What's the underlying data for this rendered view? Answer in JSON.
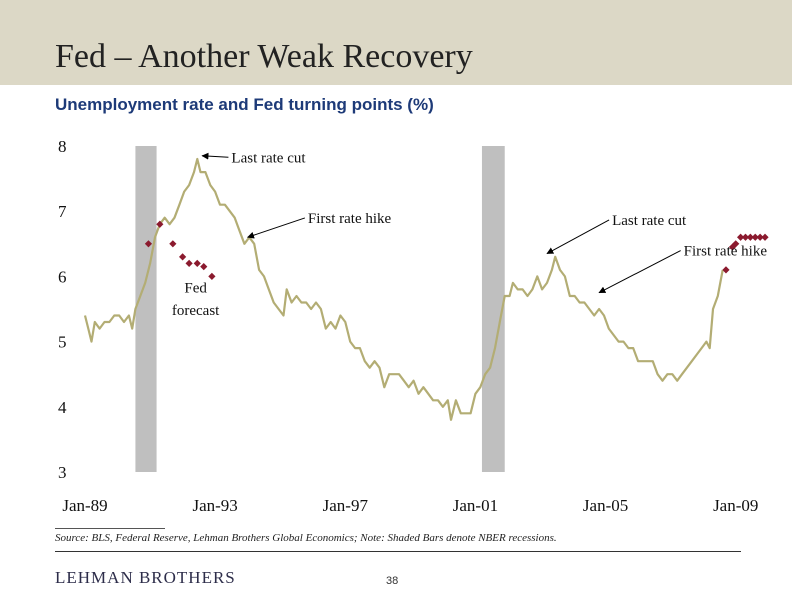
{
  "slide": {
    "title": "Fed – Another Weak Recovery",
    "subtitle": "Unemployment rate and Fed turning points (%)",
    "source": "Source: BLS, Federal Reserve, Lehman Brothers Global Economics; Note: Shaded Bars denote NBER recessions.",
    "logo_text": "LEHMAN BROTHERS",
    "page_number": "38"
  },
  "colors": {
    "title_band": "#dcd8c6",
    "subtitle": "#1d3a78",
    "unemployment_line": "#b3ad74",
    "forecast_marker": "#8b1a2e",
    "recession_bar": "#bfbfbf"
  },
  "chart_data": {
    "type": "line",
    "title": "",
    "xlabel": "",
    "ylabel": "",
    "x_tick_labels": [
      "Jan-89",
      "Jan-93",
      "Jan-97",
      "Jan-01",
      "Jan-05",
      "Jan-09"
    ],
    "x_ticks_year": [
      1989,
      1993,
      1997,
      2001,
      2005,
      2009
    ],
    "xlim": [
      1989,
      2009.5
    ],
    "ylim": [
      3,
      8
    ],
    "y_ticks": [
      3,
      4,
      5,
      6,
      7,
      8
    ],
    "grid": false,
    "recessions": [
      {
        "start": 1990.55,
        "end": 1991.2
      },
      {
        "start": 2001.2,
        "end": 2001.9
      }
    ],
    "series": [
      {
        "values": [
          [
            1989.0,
            5.4
          ],
          [
            1989.1,
            5.2
          ],
          [
            1989.2,
            5.0
          ],
          [
            1989.3,
            5.3
          ],
          [
            1989.45,
            5.2
          ],
          [
            1989.6,
            5.3
          ],
          [
            1989.75,
            5.3
          ],
          [
            1989.9,
            5.4
          ],
          [
            1990.05,
            5.4
          ],
          [
            1990.2,
            5.3
          ],
          [
            1990.35,
            5.4
          ],
          [
            1990.45,
            5.2
          ],
          [
            1990.55,
            5.5
          ],
          [
            1990.7,
            5.7
          ],
          [
            1990.85,
            5.9
          ],
          [
            1991.0,
            6.2
          ],
          [
            1991.15,
            6.6
          ],
          [
            1991.3,
            6.8
          ],
          [
            1991.45,
            6.9
          ],
          [
            1991.6,
            6.8
          ],
          [
            1991.75,
            6.9
          ],
          [
            1991.9,
            7.1
          ],
          [
            1992.05,
            7.3
          ],
          [
            1992.2,
            7.4
          ],
          [
            1992.35,
            7.6
          ],
          [
            1992.45,
            7.8
          ],
          [
            1992.55,
            7.6
          ],
          [
            1992.7,
            7.6
          ],
          [
            1992.85,
            7.4
          ],
          [
            1993.0,
            7.3
          ],
          [
            1993.15,
            7.1
          ],
          [
            1993.3,
            7.1
          ],
          [
            1993.45,
            7.0
          ],
          [
            1993.6,
            6.9
          ],
          [
            1993.75,
            6.7
          ],
          [
            1993.9,
            6.5
          ],
          [
            1994.05,
            6.6
          ],
          [
            1994.2,
            6.5
          ],
          [
            1994.35,
            6.1
          ],
          [
            1994.5,
            6.0
          ],
          [
            1994.65,
            5.8
          ],
          [
            1994.8,
            5.6
          ],
          [
            1994.95,
            5.5
          ],
          [
            1995.1,
            5.4
          ],
          [
            1995.2,
            5.8
          ],
          [
            1995.35,
            5.6
          ],
          [
            1995.5,
            5.7
          ],
          [
            1995.65,
            5.6
          ],
          [
            1995.8,
            5.6
          ],
          [
            1995.95,
            5.5
          ],
          [
            1996.1,
            5.6
          ],
          [
            1996.25,
            5.5
          ],
          [
            1996.4,
            5.2
          ],
          [
            1996.55,
            5.3
          ],
          [
            1996.7,
            5.2
          ],
          [
            1996.85,
            5.4
          ],
          [
            1997.0,
            5.3
          ],
          [
            1997.15,
            5.0
          ],
          [
            1997.3,
            4.9
          ],
          [
            1997.45,
            4.9
          ],
          [
            1997.6,
            4.7
          ],
          [
            1997.75,
            4.6
          ],
          [
            1997.9,
            4.7
          ],
          [
            1998.05,
            4.6
          ],
          [
            1998.2,
            4.3
          ],
          [
            1998.35,
            4.5
          ],
          [
            1998.5,
            4.5
          ],
          [
            1998.65,
            4.5
          ],
          [
            1998.8,
            4.4
          ],
          [
            1998.95,
            4.3
          ],
          [
            1999.1,
            4.4
          ],
          [
            1999.25,
            4.2
          ],
          [
            1999.4,
            4.3
          ],
          [
            1999.55,
            4.2
          ],
          [
            1999.7,
            4.1
          ],
          [
            1999.85,
            4.1
          ],
          [
            2000.0,
            4.0
          ],
          [
            2000.15,
            4.1
          ],
          [
            2000.25,
            3.8
          ],
          [
            2000.4,
            4.1
          ],
          [
            2000.55,
            3.9
          ],
          [
            2000.7,
            3.9
          ],
          [
            2000.85,
            3.9
          ],
          [
            2001.0,
            4.2
          ],
          [
            2001.15,
            4.3
          ],
          [
            2001.3,
            4.5
          ],
          [
            2001.45,
            4.6
          ],
          [
            2001.6,
            4.9
          ],
          [
            2001.75,
            5.3
          ],
          [
            2001.9,
            5.7
          ],
          [
            2002.05,
            5.7
          ],
          [
            2002.15,
            5.9
          ],
          [
            2002.3,
            5.8
          ],
          [
            2002.45,
            5.8
          ],
          [
            2002.6,
            5.7
          ],
          [
            2002.75,
            5.8
          ],
          [
            2002.9,
            6.0
          ],
          [
            2003.05,
            5.8
          ],
          [
            2003.2,
            5.9
          ],
          [
            2003.35,
            6.1
          ],
          [
            2003.45,
            6.3
          ],
          [
            2003.6,
            6.1
          ],
          [
            2003.75,
            6.0
          ],
          [
            2003.9,
            5.7
          ],
          [
            2004.05,
            5.7
          ],
          [
            2004.2,
            5.6
          ],
          [
            2004.35,
            5.6
          ],
          [
            2004.5,
            5.5
          ],
          [
            2004.65,
            5.4
          ],
          [
            2004.8,
            5.5
          ],
          [
            2004.95,
            5.4
          ],
          [
            2005.1,
            5.2
          ],
          [
            2005.25,
            5.1
          ],
          [
            2005.4,
            5.0
          ],
          [
            2005.55,
            5.0
          ],
          [
            2005.7,
            4.9
          ],
          [
            2005.85,
            4.9
          ],
          [
            2006.0,
            4.7
          ],
          [
            2006.15,
            4.7
          ],
          [
            2006.3,
            4.7
          ],
          [
            2006.45,
            4.7
          ],
          [
            2006.6,
            4.5
          ],
          [
            2006.75,
            4.4
          ],
          [
            2006.9,
            4.5
          ],
          [
            2007.05,
            4.5
          ],
          [
            2007.2,
            4.4
          ],
          [
            2007.35,
            4.5
          ],
          [
            2007.5,
            4.6
          ],
          [
            2007.65,
            4.7
          ],
          [
            2007.8,
            4.8
          ],
          [
            2007.95,
            4.9
          ],
          [
            2008.1,
            5.0
          ],
          [
            2008.2,
            4.9
          ],
          [
            2008.3,
            5.5
          ],
          [
            2008.45,
            5.7
          ],
          [
            2008.6,
            6.1
          ]
        ]
      },
      {
        "marker": "diamond",
        "values": [
          [
            1990.95,
            6.5
          ],
          [
            1991.3,
            6.8
          ],
          [
            1991.7,
            6.5
          ],
          [
            1992.0,
            6.3
          ],
          [
            1992.2,
            6.2
          ],
          [
            1992.45,
            6.2
          ],
          [
            1992.65,
            6.15
          ],
          [
            1992.9,
            6.0
          ],
          [
            2008.7,
            6.1
          ],
          [
            2008.9,
            6.45
          ],
          [
            2009.0,
            6.5
          ],
          [
            2009.15,
            6.6
          ],
          [
            2009.3,
            6.6
          ],
          [
            2009.45,
            6.6
          ],
          [
            2009.6,
            6.6
          ],
          [
            2009.75,
            6.6
          ],
          [
            2009.9,
            6.6
          ]
        ]
      }
    ],
    "annotations": [
      {
        "text": "Last rate cut",
        "x": 1993.5,
        "y": 7.75,
        "arrow_to": [
          1992.6,
          7.85
        ]
      },
      {
        "text": "First rate hike",
        "x": 1995.85,
        "y": 6.82,
        "arrow_to": [
          1994.0,
          6.6
        ]
      },
      {
        "text": "Fed",
        "x": 1992.4,
        "y": 5.75
      },
      {
        "text": "forecast",
        "x": 1992.4,
        "y": 5.41
      },
      {
        "text": "Last rate cut",
        "x": 2005.2,
        "y": 6.79,
        "arrow_to": [
          2003.2,
          6.35
        ]
      },
      {
        "text": "First rate hike",
        "x": 2007.4,
        "y": 6.32,
        "arrow_to": [
          2004.8,
          5.75
        ]
      }
    ]
  }
}
